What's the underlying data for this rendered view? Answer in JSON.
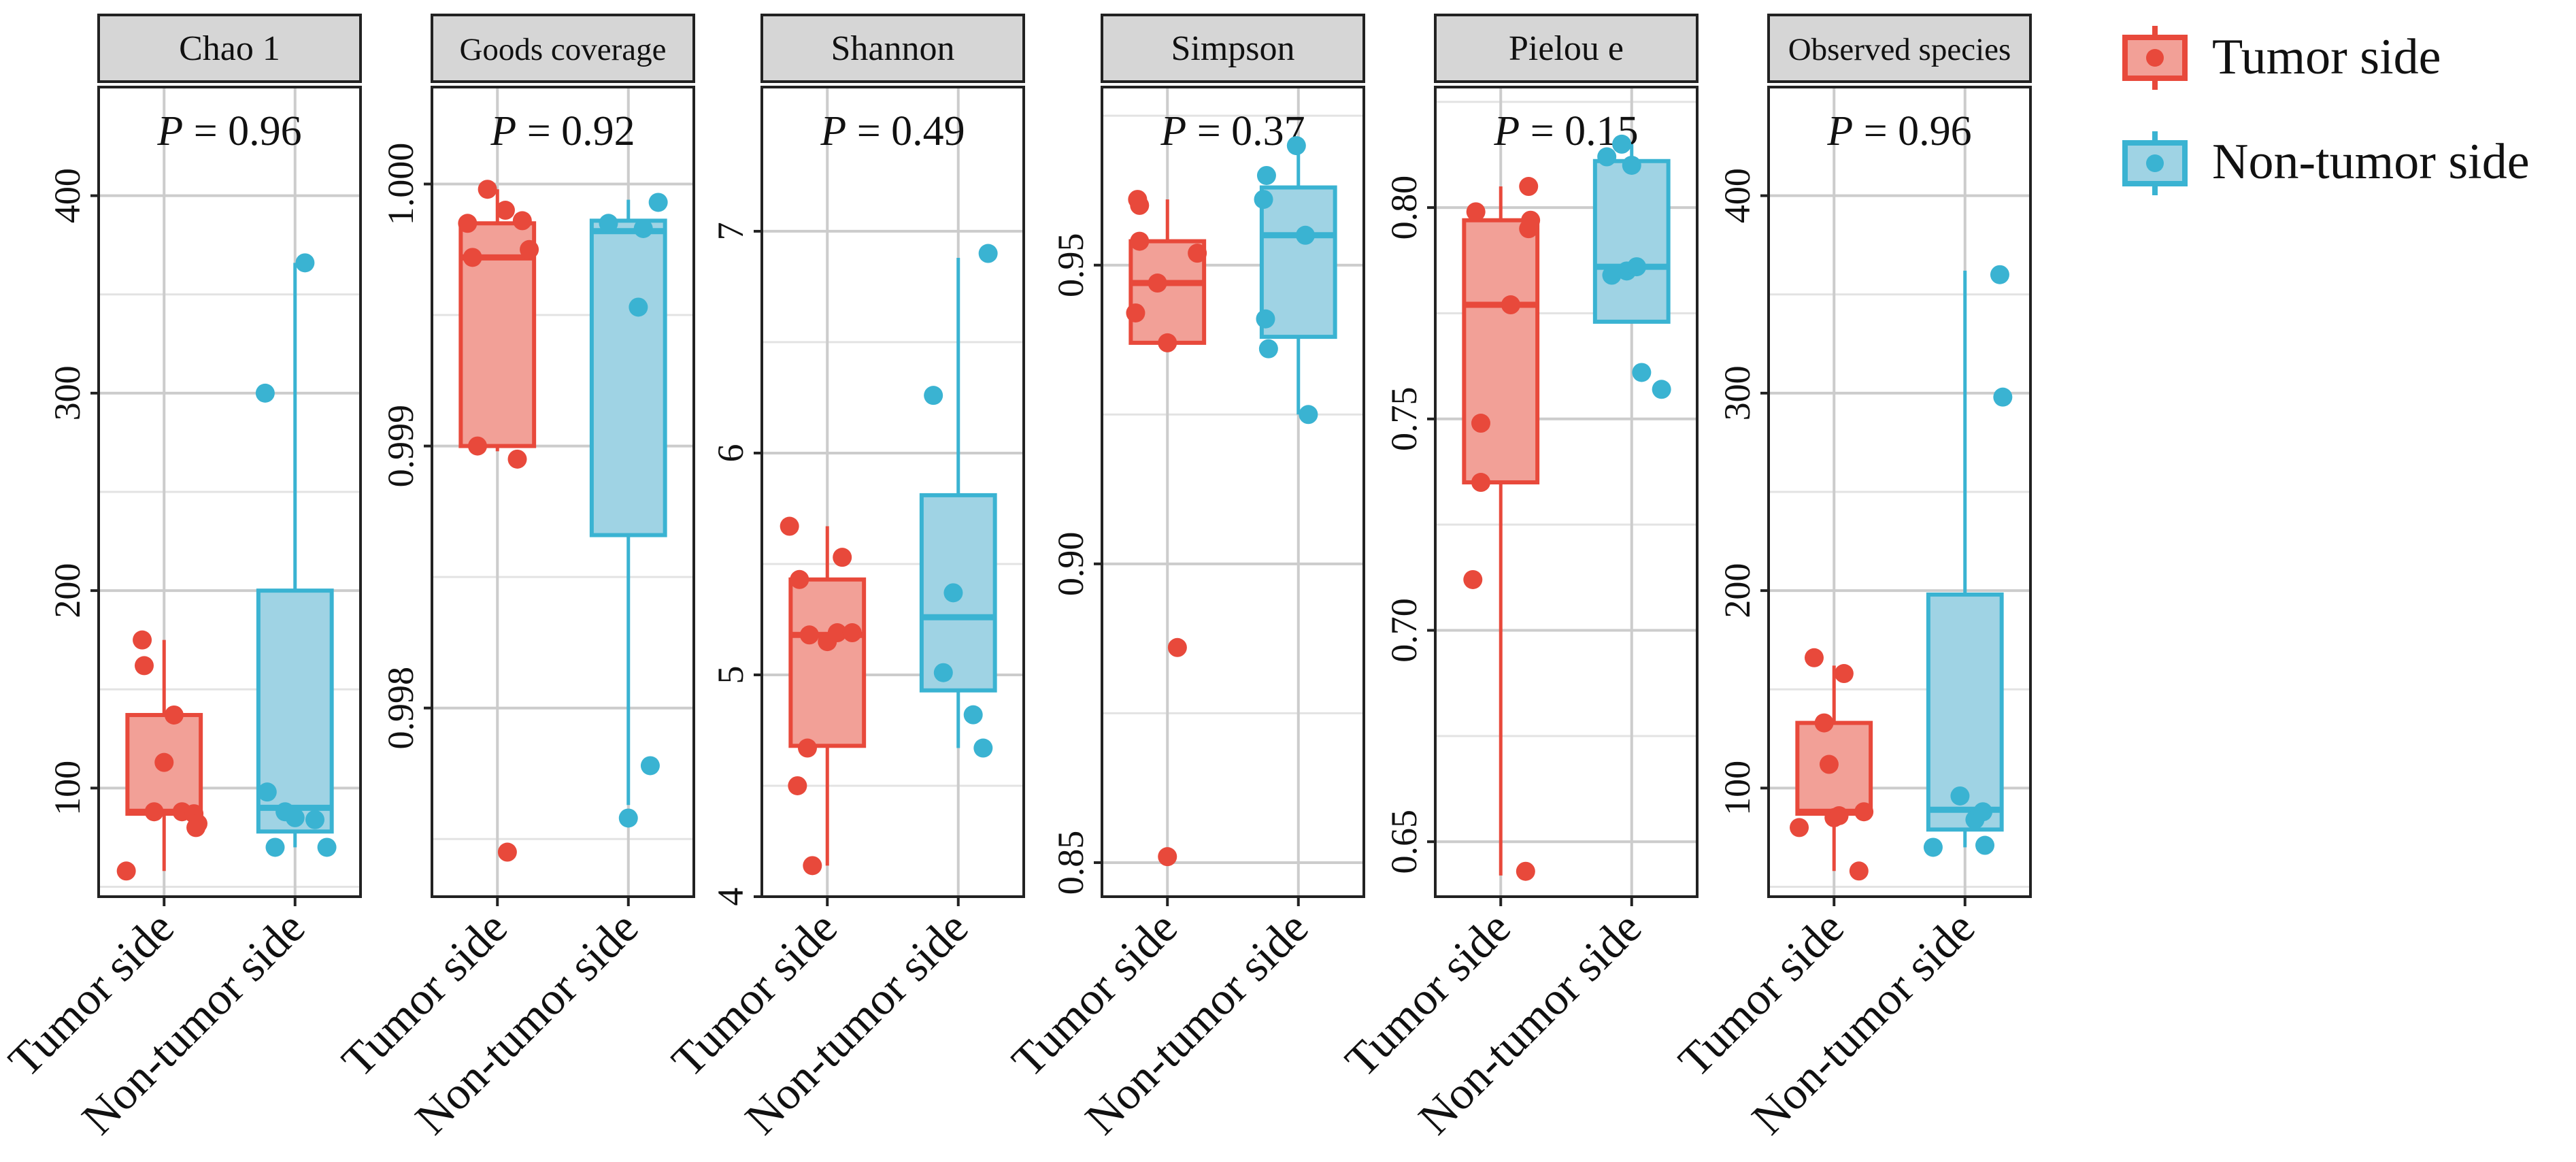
{
  "groups": [
    "Tumor side",
    "Non-tumor side"
  ],
  "legend": {
    "placement": "top-right",
    "entries": [
      {
        "label": "Tumor side",
        "color": "#e8493b",
        "fill": "#f2a097"
      },
      {
        "label": "Non-tumor side",
        "color": "#3ab3d2",
        "fill": "#9fd3e4"
      }
    ]
  },
  "chart_data": [
    {
      "type": "box",
      "title": "Chao 1",
      "p_label": "P",
      "p_value": "= 0.96",
      "ylim": [
        45,
        455
      ],
      "major_ticks": [
        100,
        200,
        300,
        400
      ],
      "minor_grid": [
        50,
        150,
        250,
        350
      ],
      "tick_labels": [
        "100",
        "200",
        "300",
        "400"
      ],
      "series": [
        {
          "name": "Tumor side",
          "box": {
            "q1": 87,
            "median": 88,
            "q3": 137,
            "whisker_low": 58,
            "whisker_high": 175
          },
          "points": [
            [
              -0.38,
              58
            ],
            [
              -0.22,
              175
            ],
            [
              -0.2,
              162
            ],
            [
              -0.1,
              88
            ],
            [
              0.0,
              113
            ],
            [
              0.1,
              137
            ],
            [
              0.18,
              88
            ],
            [
              0.3,
              87
            ],
            [
              0.32,
              80
            ],
            [
              0.34,
              82
            ]
          ]
        },
        {
          "name": "Non-tumor side",
          "box": {
            "q1": 78,
            "median": 90,
            "q3": 200,
            "whisker_low": 70,
            "whisker_high": 366
          },
          "points": [
            [
              -0.3,
              300
            ],
            [
              -0.2,
              70
            ],
            [
              -0.1,
              88
            ],
            [
              0.0,
              85
            ],
            [
              0.1,
              366
            ],
            [
              0.2,
              84
            ],
            [
              0.32,
              70
            ],
            [
              -0.28,
              98
            ]
          ]
        }
      ]
    },
    {
      "type": "box",
      "title": "Goods coverage",
      "p_label": "P",
      "p_value": "= 0.92",
      "ylim": [
        0.99728,
        1.00037
      ],
      "major_ticks": [
        0.998,
        0.999,
        1.0
      ],
      "minor_grid": [
        0.9975,
        0.9985,
        0.9995
      ],
      "tick_labels": [
        "0.998",
        "0.999",
        "1.000"
      ],
      "series": [
        {
          "name": "Tumor side",
          "box": {
            "q1": 0.999,
            "median": 0.99972,
            "q3": 0.99985,
            "whisker_low": 0.99898,
            "whisker_high": 0.99998
          },
          "points": [
            [
              -0.3,
              0.99985
            ],
            [
              -0.25,
              0.99972
            ],
            [
              -0.1,
              0.99998
            ],
            [
              0.08,
              0.9999
            ],
            [
              0.2,
              0.99895
            ],
            [
              0.25,
              0.99986
            ],
            [
              0.32,
              0.99975
            ],
            [
              -0.2,
              0.999
            ],
            [
              0.1,
              0.99745
            ]
          ]
        },
        {
          "name": "Non-tumor side",
          "box": {
            "q1": 0.99866,
            "median": 0.99982,
            "q3": 0.99986,
            "whisker_low": 0.99763,
            "whisker_high": 0.99994
          },
          "points": [
            [
              -0.2,
              0.99985
            ],
            [
              0.0,
              0.99758
            ],
            [
              0.1,
              0.99953
            ],
            [
              0.15,
              0.99983
            ],
            [
              0.3,
              0.99993
            ],
            [
              0.22,
              0.99778
            ]
          ]
        }
      ]
    },
    {
      "type": "box",
      "title": "Shannon",
      "p_label": "P",
      "p_value": "= 0.49",
      "ylim": [
        4.0,
        7.65
      ],
      "major_ticks": [
        4,
        5,
        6,
        7
      ],
      "minor_grid": [
        4.5,
        5.5,
        6.5
      ],
      "tick_labels": [
        "4",
        "5",
        "6",
        "7"
      ],
      "series": [
        {
          "name": "Tumor side",
          "box": {
            "q1": 4.68,
            "median": 5.18,
            "q3": 5.43,
            "whisker_low": 4.14,
            "whisker_high": 5.67
          },
          "points": [
            [
              -0.38,
              5.67
            ],
            [
              -0.28,
              5.43
            ],
            [
              -0.3,
              4.5
            ],
            [
              -0.2,
              4.67
            ],
            [
              -0.18,
              5.18
            ],
            [
              -0.15,
              4.14
            ],
            [
              0.0,
              5.15
            ],
            [
              0.1,
              5.19
            ],
            [
              0.15,
              5.53
            ],
            [
              0.25,
              5.19
            ]
          ]
        },
        {
          "name": "Non-tumor side",
          "box": {
            "q1": 4.93,
            "median": 5.26,
            "q3": 5.81,
            "whisker_low": 4.67,
            "whisker_high": 6.88
          },
          "points": [
            [
              -0.25,
              6.26
            ],
            [
              -0.15,
              5.01
            ],
            [
              -0.05,
              5.37
            ],
            [
              0.15,
              4.82
            ],
            [
              0.25,
              4.67
            ],
            [
              0.3,
              6.9
            ]
          ]
        }
      ]
    },
    {
      "type": "box",
      "title": "Simpson",
      "p_label": "P",
      "p_value": "= 0.37",
      "ylim": [
        0.8443,
        0.9798
      ],
      "major_ticks": [
        0.85,
        0.9,
        0.95
      ],
      "minor_grid": [
        0.875,
        0.925,
        0.975
      ],
      "tick_labels": [
        "0.85",
        "0.90",
        "0.95"
      ],
      "series": [
        {
          "name": "Tumor side",
          "box": {
            "q1": 0.937,
            "median": 0.947,
            "q3": 0.954,
            "whisker_low": 0.937,
            "whisker_high": 0.961
          },
          "points": [
            [
              -0.3,
              0.961
            ],
            [
              -0.32,
              0.942
            ],
            [
              -0.28,
              0.954
            ],
            [
              0.0,
              0.851
            ],
            [
              -0.1,
              0.947
            ],
            [
              0.0,
              0.937
            ],
            [
              0.1,
              0.886
            ],
            [
              0.3,
              0.952
            ],
            [
              -0.28,
              0.96
            ]
          ]
        },
        {
          "name": "Non-tumor side",
          "box": {
            "q1": 0.938,
            "median": 0.955,
            "q3": 0.963,
            "whisker_low": 0.925,
            "whisker_high": 0.97
          },
          "points": [
            [
              -0.35,
              0.961
            ],
            [
              -0.32,
              0.965
            ],
            [
              -0.33,
              0.941
            ],
            [
              -0.3,
              0.936
            ],
            [
              -0.02,
              0.97
            ],
            [
              0.07,
              0.955
            ],
            [
              0.1,
              0.925
            ]
          ]
        }
      ]
    },
    {
      "type": "box",
      "title": "Pielou e",
      "p_label": "P",
      "p_value": "= 0.15",
      "ylim": [
        0.637,
        0.8285
      ],
      "major_ticks": [
        0.65,
        0.7,
        0.75,
        0.8
      ],
      "minor_grid": [
        0.675,
        0.725,
        0.775,
        0.825
      ],
      "tick_labels": [
        "0.65",
        "0.70",
        "0.75",
        "0.80"
      ],
      "series": [
        {
          "name": "Tumor side",
          "box": {
            "q1": 0.735,
            "median": 0.777,
            "q3": 0.797,
            "whisker_low": 0.642,
            "whisker_high": 0.805
          },
          "points": [
            [
              -0.28,
              0.712
            ],
            [
              -0.2,
              0.749
            ],
            [
              -0.25,
              0.799
            ],
            [
              -0.2,
              0.735
            ],
            [
              0.1,
              0.777
            ],
            [
              0.28,
              0.805
            ],
            [
              0.3,
              0.797
            ],
            [
              0.25,
              0.643
            ],
            [
              0.28,
              0.795
            ]
          ]
        },
        {
          "name": "Non-tumor side",
          "box": {
            "q1": 0.773,
            "median": 0.786,
            "q3": 0.811,
            "whisker_low": 0.773,
            "whisker_high": 0.815
          },
          "points": [
            [
              -0.25,
              0.812
            ],
            [
              -0.1,
              0.815
            ],
            [
              0.0,
              0.81
            ],
            [
              -0.05,
              0.785
            ],
            [
              0.05,
              0.786
            ],
            [
              0.1,
              0.761
            ],
            [
              0.3,
              0.757
            ],
            [
              -0.2,
              0.784
            ]
          ]
        }
      ]
    },
    {
      "type": "box",
      "title": "Observed species",
      "p_label": "P",
      "p_value": "= 0.96",
      "ylim": [
        45,
        455
      ],
      "major_ticks": [
        100,
        200,
        300,
        400
      ],
      "minor_grid": [
        50,
        150,
        250,
        350
      ],
      "tick_labels": [
        "100",
        "200",
        "300",
        "400"
      ],
      "series": [
        {
          "name": "Tumor side",
          "box": {
            "q1": 87,
            "median": 88,
            "q3": 133,
            "whisker_low": 58,
            "whisker_high": 162
          },
          "points": [
            [
              -0.35,
              80
            ],
            [
              -0.2,
              166
            ],
            [
              -0.1,
              133
            ],
            [
              -0.05,
              112
            ],
            [
              0.0,
              85
            ],
            [
              0.05,
              86
            ],
            [
              0.1,
              158
            ],
            [
              0.25,
              58
            ],
            [
              0.3,
              88
            ]
          ]
        },
        {
          "name": "Non-tumor side",
          "box": {
            "q1": 79,
            "median": 89,
            "q3": 198,
            "whisker_low": 70,
            "whisker_high": 362
          },
          "points": [
            [
              -0.32,
              70
            ],
            [
              -0.05,
              96
            ],
            [
              0.1,
              84
            ],
            [
              0.2,
              71
            ],
            [
              0.35,
              360
            ],
            [
              0.38,
              298
            ],
            [
              0.18,
              88
            ]
          ]
        }
      ]
    }
  ]
}
